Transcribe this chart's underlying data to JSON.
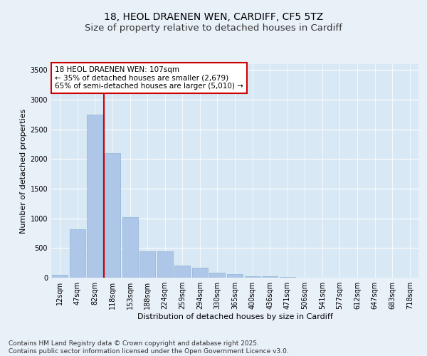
{
  "title_line1": "18, HEOL DRAENEN WEN, CARDIFF, CF5 5TZ",
  "title_line2": "Size of property relative to detached houses in Cardiff",
  "xlabel": "Distribution of detached houses by size in Cardiff",
  "ylabel": "Number of detached properties",
  "categories": [
    "12sqm",
    "47sqm",
    "82sqm",
    "118sqm",
    "153sqm",
    "188sqm",
    "224sqm",
    "259sqm",
    "294sqm",
    "330sqm",
    "365sqm",
    "400sqm",
    "436sqm",
    "471sqm",
    "506sqm",
    "541sqm",
    "577sqm",
    "612sqm",
    "647sqm",
    "683sqm",
    "718sqm"
  ],
  "values": [
    50,
    820,
    2750,
    2100,
    1020,
    450,
    450,
    200,
    170,
    90,
    60,
    30,
    20,
    10,
    5,
    3,
    2,
    1,
    1,
    1,
    1
  ],
  "bar_color": "#aec6e8",
  "bar_edge_color": "#8db4d8",
  "vline_color": "#cc0000",
  "annotation_text": "18 HEOL DRAENEN WEN: 107sqm\n← 35% of detached houses are smaller (2,679)\n65% of semi-detached houses are larger (5,010) →",
  "annotation_box_color": "#ffffff",
  "annotation_box_edge": "#cc0000",
  "ylim": [
    0,
    3600
  ],
  "yticks": [
    0,
    500,
    1000,
    1500,
    2000,
    2500,
    3000,
    3500
  ],
  "footer_text": "Contains HM Land Registry data © Crown copyright and database right 2025.\nContains public sector information licensed under the Open Government Licence v3.0.",
  "bg_color": "#e8f0f8",
  "plot_bg_color": "#d8e8f4",
  "grid_color": "#ffffff",
  "title_fontsize": 10,
  "subtitle_fontsize": 9.5,
  "label_fontsize": 8,
  "tick_fontsize": 7,
  "footer_fontsize": 6.5
}
